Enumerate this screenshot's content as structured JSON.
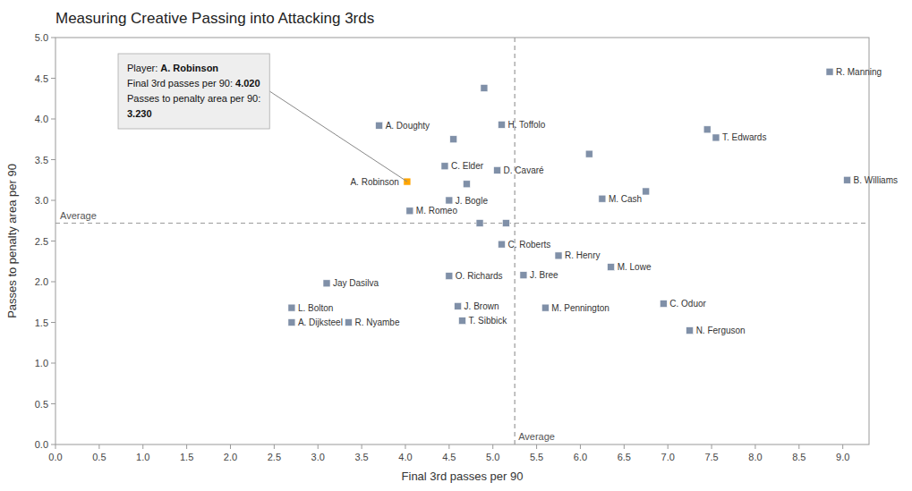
{
  "chart_data": {
    "type": "scatter",
    "title": "Measuring Creative Passing into Attacking 3rds",
    "x_label": "Final 3rd passes per 90",
    "y_label": "Passes to penalty area per 90",
    "xlim": [
      0,
      9.3
    ],
    "ylim": [
      0,
      5.0
    ],
    "xticks": [
      {
        "value": 0,
        "label": "0.0"
      },
      0.5,
      {
        "value": 1,
        "label": "1.0"
      },
      1.5,
      {
        "value": 2,
        "label": "2.0"
      },
      2.5,
      {
        "value": 3,
        "label": "3.0"
      },
      3.5,
      {
        "value": 4,
        "label": "4.0"
      },
      4.5,
      {
        "value": 5,
        "label": "5.0"
      },
      5.5,
      {
        "value": 6,
        "label": "6.0"
      },
      6.5,
      {
        "value": 7,
        "label": "7.0"
      },
      7.5,
      {
        "value": 8,
        "label": "8.0"
      },
      8.5,
      {
        "value": 9,
        "label": "9.0"
      }
    ],
    "yticks": [
      {
        "value": 0,
        "label": "0.0"
      },
      0.5,
      {
        "value": 1,
        "label": "1.0"
      },
      1.5,
      {
        "value": 2,
        "label": "2.0"
      },
      2.5,
      {
        "value": 3,
        "label": "3.0"
      },
      3.5,
      {
        "value": 4,
        "label": "4.0"
      },
      4.5,
      {
        "value": 5,
        "label": "5.0"
      }
    ],
    "grid": false,
    "series": [
      {
        "color": "#8090a8",
        "marker": "square",
        "label_position": "right",
        "labels": [
          "R. Manning",
          "B. Williams",
          "T. Edwards",
          "M. Cash",
          "H. Toffolo",
          "D. Cavaré",
          "R. Henry",
          "M. Lowe",
          "J. Bree",
          "C. Roberts",
          "M. Pennington",
          "C. Oduor",
          "N. Ferguson",
          "C. Elder",
          "J. Bogle",
          "M. Romeo",
          "A. Doughty",
          "O. Richards",
          "Jay Dasilva",
          "J. Brown",
          "T. Sibbick",
          "L. Bolton",
          "A. Dijksteel",
          "R. Nyambe",
          null,
          null,
          null,
          null,
          null,
          null,
          null,
          null
        ],
        "x": [
          8.85,
          9.05,
          7.55,
          6.25,
          5.1,
          5.05,
          5.75,
          6.35,
          5.35,
          5.1,
          5.6,
          6.95,
          7.25,
          4.45,
          4.5,
          4.05,
          3.7,
          4.5,
          3.1,
          4.6,
          4.65,
          2.7,
          2.7,
          3.35,
          4.9,
          4.55,
          4.7,
          4.85,
          5.15,
          6.1,
          6.75,
          7.45
        ],
        "values": [
          4.58,
          3.25,
          3.77,
          3.02,
          3.93,
          3.37,
          2.32,
          2.18,
          2.08,
          2.46,
          1.68,
          1.73,
          1.4,
          3.42,
          3.0,
          2.87,
          3.92,
          2.07,
          1.98,
          1.7,
          1.52,
          1.68,
          1.5,
          1.5,
          4.38,
          3.75,
          3.2,
          2.72,
          2.72,
          3.57,
          3.11,
          3.87
        ]
      },
      {
        "color": "#FFA500",
        "marker": "square",
        "label_position": "left",
        "labels": [
          "A. Robinson"
        ],
        "x": [
          4.02
        ],
        "values": [
          3.23
        ]
      }
    ],
    "reference_lines": [
      {
        "axis": "x",
        "value": 5.25,
        "label": "Average"
      },
      {
        "axis": "y",
        "value": 2.72,
        "label": "Average"
      }
    ],
    "annotation": {
      "lines": [
        [
          {
            "text": "Player: "
          },
          {
            "text": "A. Robinson",
            "bold": true
          }
        ],
        [
          {
            "text": "Final 3rd passes per 90: "
          },
          {
            "text": "4.020",
            "bold": true
          }
        ],
        [
          {
            "text": "Passes to penalty area per 90:"
          }
        ],
        [
          {
            "text": "3.230",
            "bold": true
          }
        ]
      ]
    }
  }
}
